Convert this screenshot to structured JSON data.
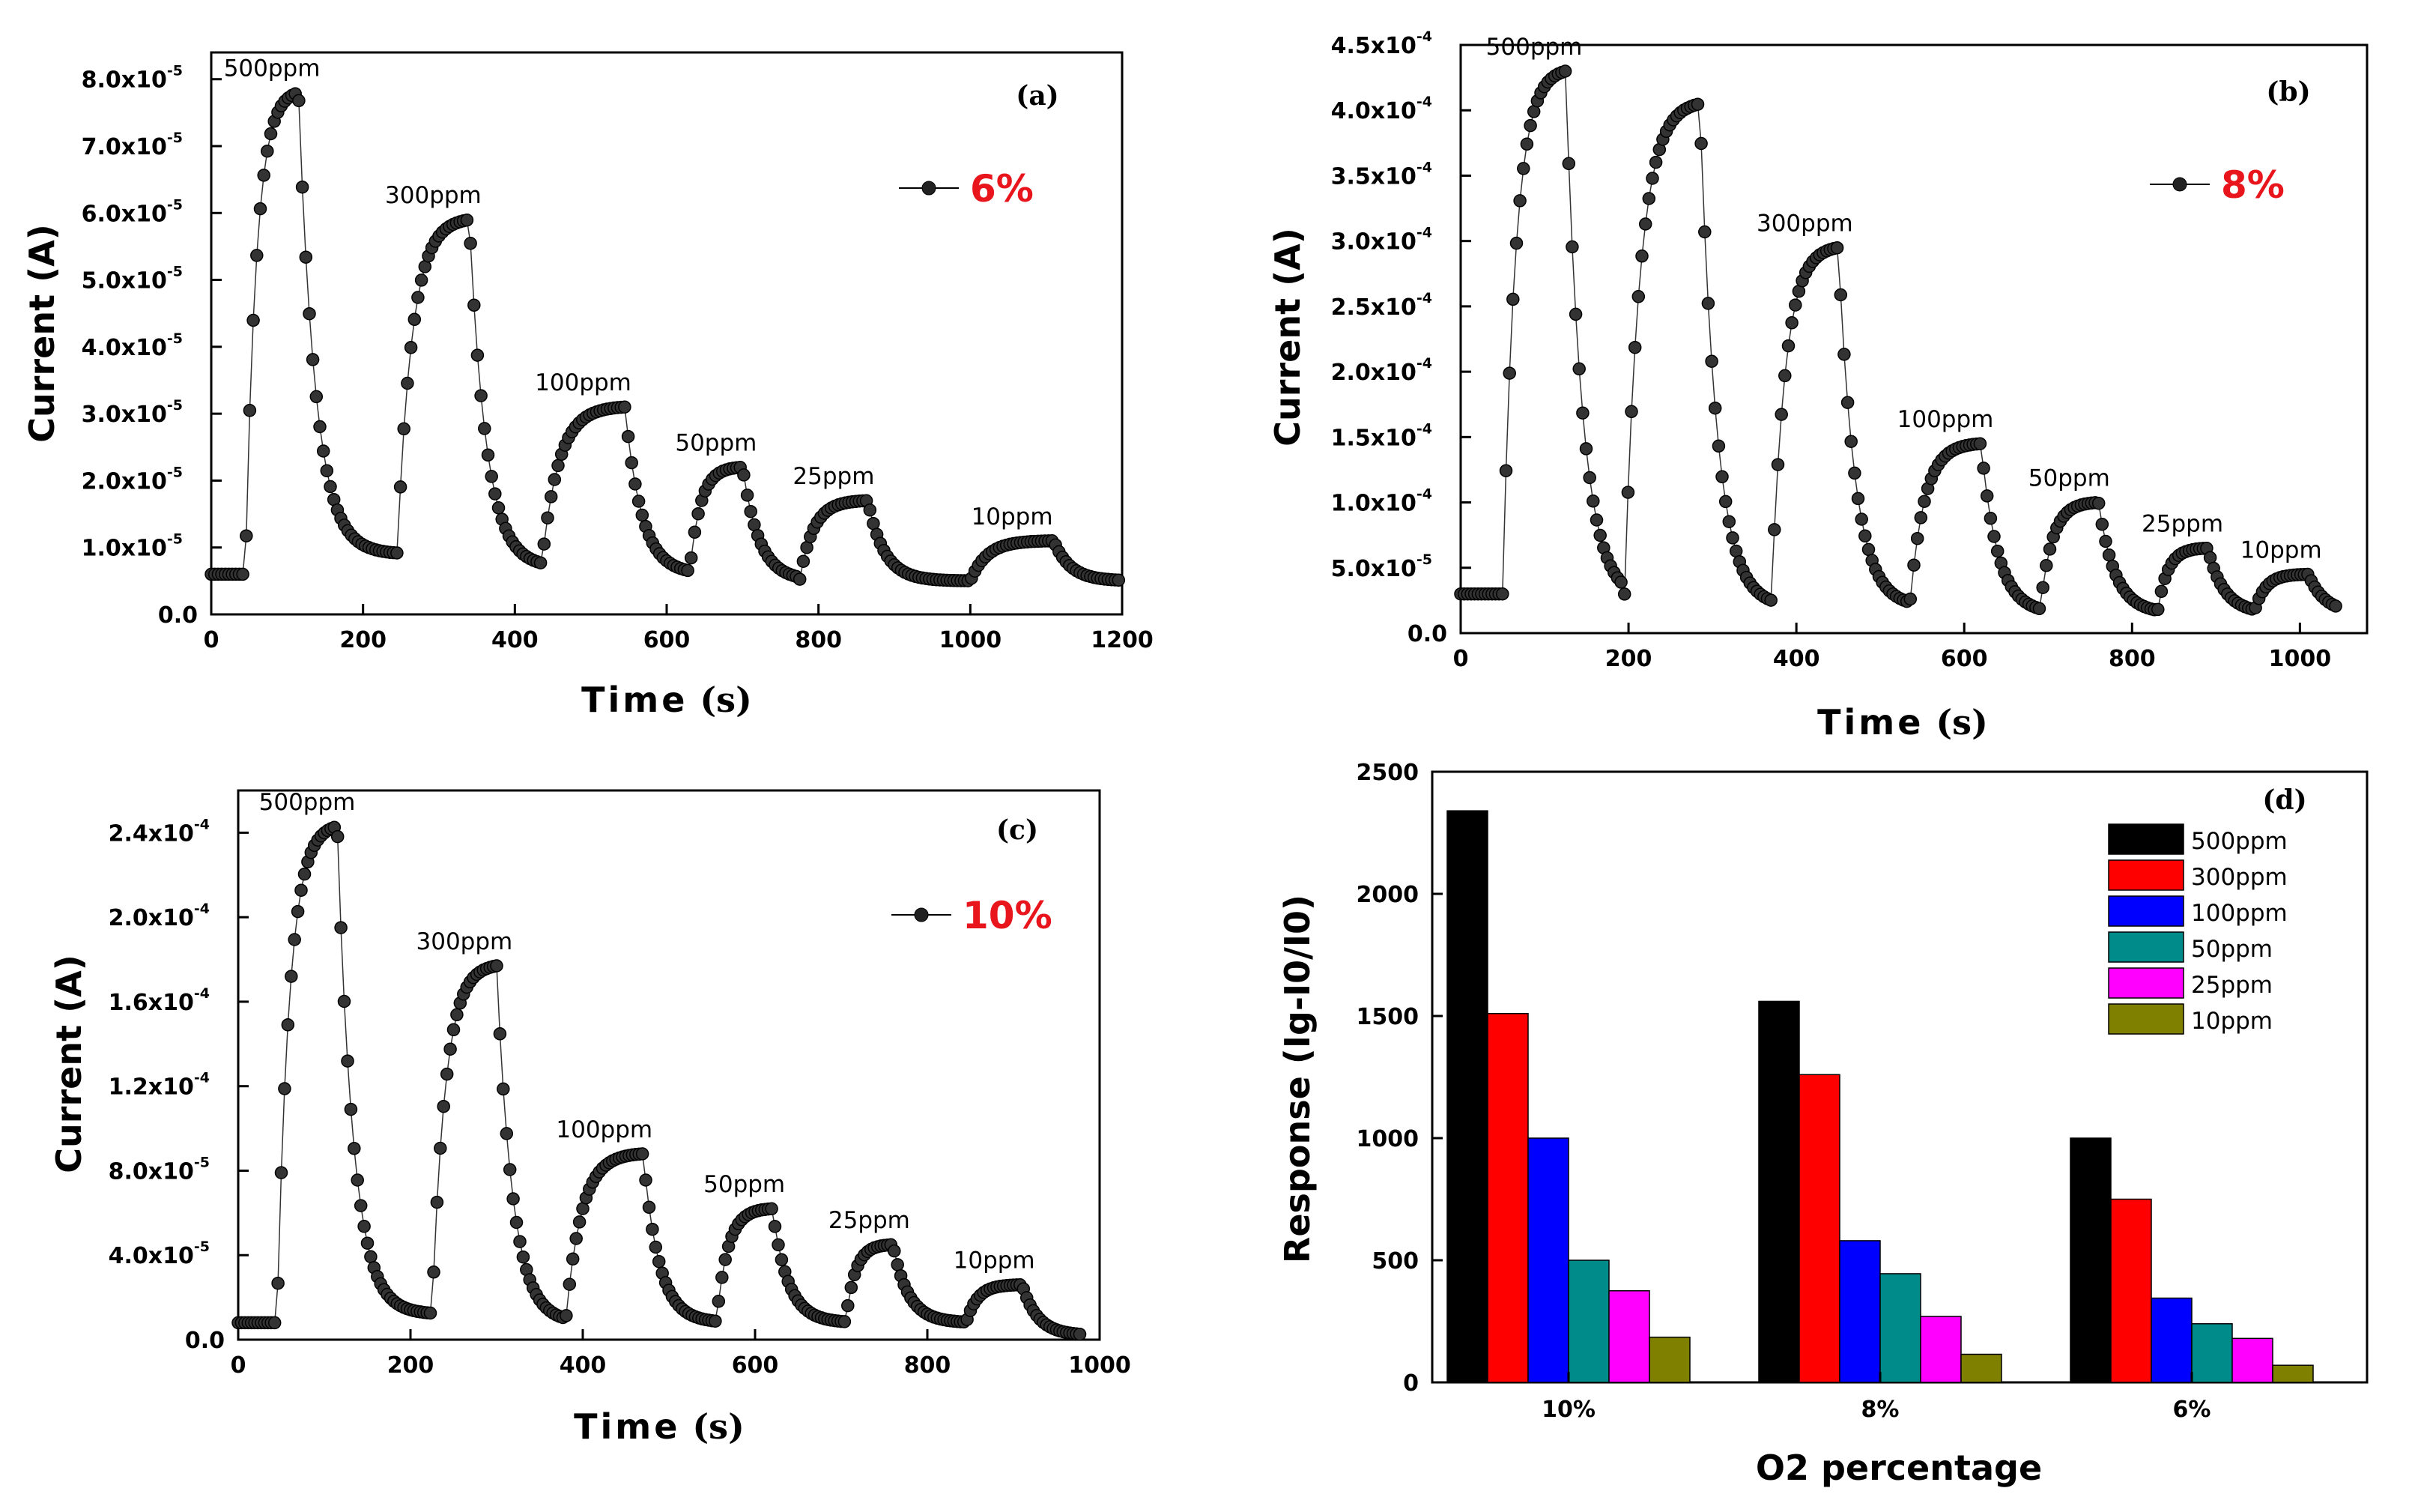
{
  "chart_data": [
    {
      "type": "scatter",
      "panel_label": "(a)",
      "xlabel": "Time",
      "xunit": "(s)",
      "ylabel": "Current (A)",
      "xlim": [
        0,
        1200
      ],
      "ylim": [
        0,
        8.4e-05
      ],
      "x_ticks": [
        "0",
        "200",
        "400",
        "600",
        "800",
        "1000",
        "1200"
      ],
      "y_ticks": [
        {
          "m": "0.0",
          "e": ""
        },
        {
          "m": "1.0x10",
          "e": "-5"
        },
        {
          "m": "2.0x10",
          "e": "-5"
        },
        {
          "m": "3.0x10",
          "e": "-5"
        },
        {
          "m": "4.0x10",
          "e": "-5"
        },
        {
          "m": "5.0x10",
          "e": "-5"
        },
        {
          "m": "6.0x10",
          "e": "-5"
        },
        {
          "m": "7.0x10",
          "e": "-5"
        },
        {
          "m": "8.0x10",
          "e": "-5"
        }
      ],
      "legend": "6%",
      "legend_color": "#e8161c",
      "baseline": 6e-06,
      "pulses": [
        {
          "label": "500ppm",
          "on": 45,
          "off": 115,
          "peak": 7.8e-05,
          "end": 9e-06
        },
        {
          "label": "300ppm",
          "on": 245,
          "off": 340,
          "peak": 5.9e-05,
          "end": 7e-06
        },
        {
          "label": "100ppm",
          "on": 435,
          "off": 545,
          "peak": 3.1e-05,
          "end": 6e-06
        },
        {
          "label": "50ppm",
          "on": 630,
          "off": 700,
          "peak": 2.2e-05,
          "end": 5e-06
        },
        {
          "label": "25ppm",
          "on": 775,
          "off": 865,
          "peak": 1.7e-05,
          "end": 5e-06
        },
        {
          "label": "10ppm",
          "on": 1000,
          "off": 1110,
          "peak": 1.1e-05,
          "end": 5e-06
        }
      ],
      "x_end": 1200
    },
    {
      "type": "scatter",
      "panel_label": "(b)",
      "xlabel": "Time",
      "xunit": "(s)",
      "ylabel": "Current (A)",
      "xlim": [
        0,
        1080
      ],
      "ylim": [
        0,
        0.00045
      ],
      "x_ticks": [
        "0",
        "200",
        "400",
        "600",
        "800",
        "1000"
      ],
      "y_ticks": [
        {
          "m": "0.0",
          "e": ""
        },
        {
          "m": "5.0x10",
          "e": "-5"
        },
        {
          "m": "1.0x10",
          "e": "-4"
        },
        {
          "m": "1.5x10",
          "e": "-4"
        },
        {
          "m": "2.0x10",
          "e": "-4"
        },
        {
          "m": "2.5x10",
          "e": "-4"
        },
        {
          "m": "3.0x10",
          "e": "-4"
        },
        {
          "m": "3.5x10",
          "e": "-4"
        },
        {
          "m": "4.0x10",
          "e": "-4"
        },
        {
          "m": "4.5x10",
          "e": "-4"
        }
      ],
      "legend": "8%",
      "legend_color": "#e8161c",
      "baseline": 3e-05,
      "pulses": [
        {
          "label": "500ppm",
          "on": 50,
          "off": 125,
          "peak": 0.00043,
          "end": 2.5e-05
        },
        {
          "label": "",
          "on": 195,
          "off": 285,
          "peak": 0.000405,
          "end": 2e-05
        },
        {
          "label": "300ppm",
          "on": 370,
          "off": 450,
          "peak": 0.000295,
          "end": 2e-05
        },
        {
          "label": "100ppm",
          "on": 535,
          "off": 620,
          "peak": 0.000145,
          "end": 1.5e-05
        },
        {
          "label": "50ppm",
          "on": 690,
          "off": 760,
          "peak": 0.0001,
          "end": 1.5e-05
        },
        {
          "label": "25ppm",
          "on": 830,
          "off": 890,
          "peak": 6.5e-05,
          "end": 1.5e-05
        },
        {
          "label": "10ppm",
          "on": 945,
          "off": 1010,
          "peak": 4.5e-05,
          "end": 1.5e-05
        }
      ],
      "x_end": 1045
    },
    {
      "type": "scatter",
      "panel_label": "(c)",
      "xlabel": "Time",
      "xunit": "(s)",
      "ylabel": "Current (A)",
      "xlim": [
        0,
        1000
      ],
      "ylim": [
        0,
        0.00026
      ],
      "x_ticks": [
        "0",
        "200",
        "400",
        "600",
        "800",
        "1000"
      ],
      "y_ticks": [
        {
          "m": "0.0",
          "e": ""
        },
        {
          "m": "4.0x10",
          "e": "-5"
        },
        {
          "m": "8.0x10",
          "e": "-5"
        },
        {
          "m": "1.2x10",
          "e": "-4"
        },
        {
          "m": "1.6x10",
          "e": "-4"
        },
        {
          "m": "2.0x10",
          "e": "-4"
        },
        {
          "m": "2.4x10",
          "e": "-4"
        }
      ],
      "legend": "10%",
      "legend_color": "#e8161c",
      "baseline": 8e-06,
      "pulses": [
        {
          "label": "500ppm",
          "on": 45,
          "off": 115,
          "peak": 0.000243,
          "end": 1.2e-05
        },
        {
          "label": "300ppm",
          "on": 225,
          "off": 300,
          "peak": 0.000177,
          "end": 8e-06
        },
        {
          "label": "100ppm",
          "on": 380,
          "off": 470,
          "peak": 8.8e-05,
          "end": 8e-06
        },
        {
          "label": "50ppm",
          "on": 555,
          "off": 620,
          "peak": 6.2e-05,
          "end": 8e-06
        },
        {
          "label": "25ppm",
          "on": 705,
          "off": 760,
          "peak": 4.5e-05,
          "end": 8e-06
        },
        {
          "label": "10ppm",
          "on": 845,
          "off": 910,
          "peak": 2.6e-05,
          "end": 2e-06
        }
      ],
      "x_end": 980
    },
    {
      "type": "bar",
      "panel_label": "(d)",
      "xlabel": "O2 percentage",
      "ylabel": "Response (Ig-I0/I0)",
      "categories": [
        "10%",
        "8%",
        "6%"
      ],
      "ylim": [
        0,
        2500
      ],
      "y_ticks": [
        "0",
        "500",
        "1000",
        "1500",
        "2000",
        "2500"
      ],
      "series": [
        {
          "name": "500ppm",
          "color": "#000000",
          "values": [
            2340,
            1560,
            1000
          ]
        },
        {
          "name": "300ppm",
          "color": "#ff0000",
          "values": [
            1510,
            1260,
            750
          ]
        },
        {
          "name": "100ppm",
          "color": "#0000ff",
          "values": [
            1000,
            580,
            345
          ]
        },
        {
          "name": "50ppm",
          "color": "#008b8b",
          "values": [
            500,
            445,
            240
          ]
        },
        {
          "name": "25ppm",
          "color": "#ff00ff",
          "values": [
            375,
            270,
            180
          ]
        },
        {
          "name": "10ppm",
          "color": "#808000",
          "values": [
            185,
            115,
            70
          ]
        }
      ]
    }
  ]
}
